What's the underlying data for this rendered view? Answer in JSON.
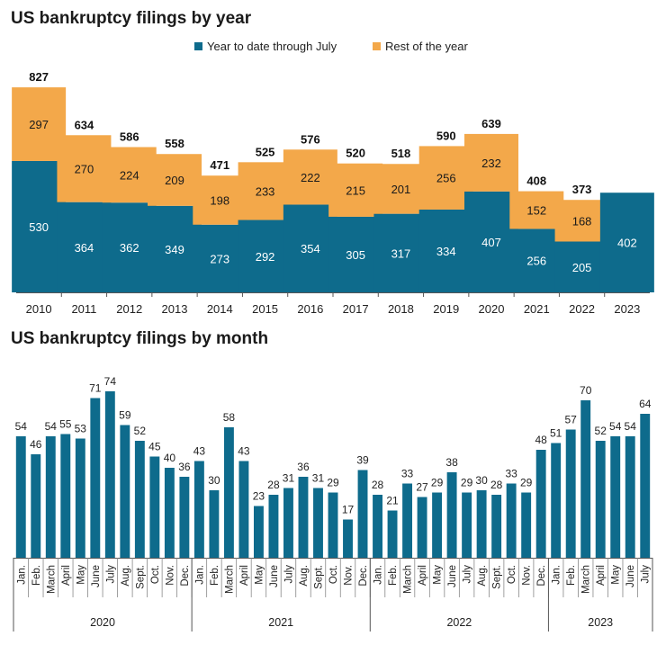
{
  "colors": {
    "ytd": "#0e6b8c",
    "rest": "#f3a84a",
    "axis": "#555555"
  },
  "chart_data": [
    {
      "type": "bar",
      "stacked": true,
      "title": "US bankruptcy filings by year",
      "legend": [
        "Year to date through July",
        "Rest of the year"
      ],
      "legend_position": "top-center",
      "categories": [
        "2010",
        "2011",
        "2012",
        "2013",
        "2014",
        "2015",
        "2016",
        "2017",
        "2018",
        "2019",
        "2020",
        "2021",
        "2022",
        "2023"
      ],
      "series": [
        {
          "name": "Year to date through July",
          "values": [
            530,
            364,
            362,
            349,
            273,
            292,
            354,
            305,
            317,
            334,
            407,
            256,
            205,
            402
          ]
        },
        {
          "name": "Rest of the year",
          "values": [
            297,
            270,
            224,
            209,
            198,
            233,
            222,
            215,
            201,
            256,
            232,
            152,
            168,
            null
          ]
        }
      ],
      "totals": [
        827,
        634,
        586,
        558,
        471,
        525,
        576,
        520,
        518,
        590,
        639,
        408,
        373,
        null
      ],
      "ylim": [
        0,
        860
      ]
    },
    {
      "type": "bar",
      "title": "US bankruptcy filings by month",
      "groups": [
        {
          "label": "2020",
          "months": [
            "Jan.",
            "Feb.",
            "March",
            "April",
            "May",
            "June",
            "July",
            "Aug.",
            "Sept.",
            "Oct.",
            "Nov.",
            "Dec."
          ],
          "values": [
            54,
            46,
            54,
            55,
            53,
            71,
            74,
            59,
            52,
            45,
            40,
            36
          ]
        },
        {
          "label": "2021",
          "months": [
            "Jan.",
            "Feb.",
            "March",
            "April",
            "May",
            "June",
            "July",
            "Aug.",
            "Sept.",
            "Oct.",
            "Nov.",
            "Dec."
          ],
          "values": [
            43,
            30,
            58,
            43,
            23,
            28,
            31,
            36,
            31,
            29,
            17,
            39
          ]
        },
        {
          "label": "2022",
          "months": [
            "Jan.",
            "Feb.",
            "March",
            "April",
            "May",
            "June",
            "July",
            "Aug.",
            "Sept.",
            "Oct.",
            "Nov.",
            "Dec."
          ],
          "values": [
            28,
            21,
            33,
            27,
            29,
            38,
            29,
            30,
            28,
            33,
            29,
            48
          ]
        },
        {
          "label": "2023",
          "months": [
            "Jan.",
            "Feb.",
            "March",
            "April",
            "May",
            "June",
            "July"
          ],
          "values": [
            51,
            57,
            70,
            52,
            54,
            54,
            64
          ]
        }
      ],
      "ylim": [
        0,
        80
      ]
    }
  ]
}
